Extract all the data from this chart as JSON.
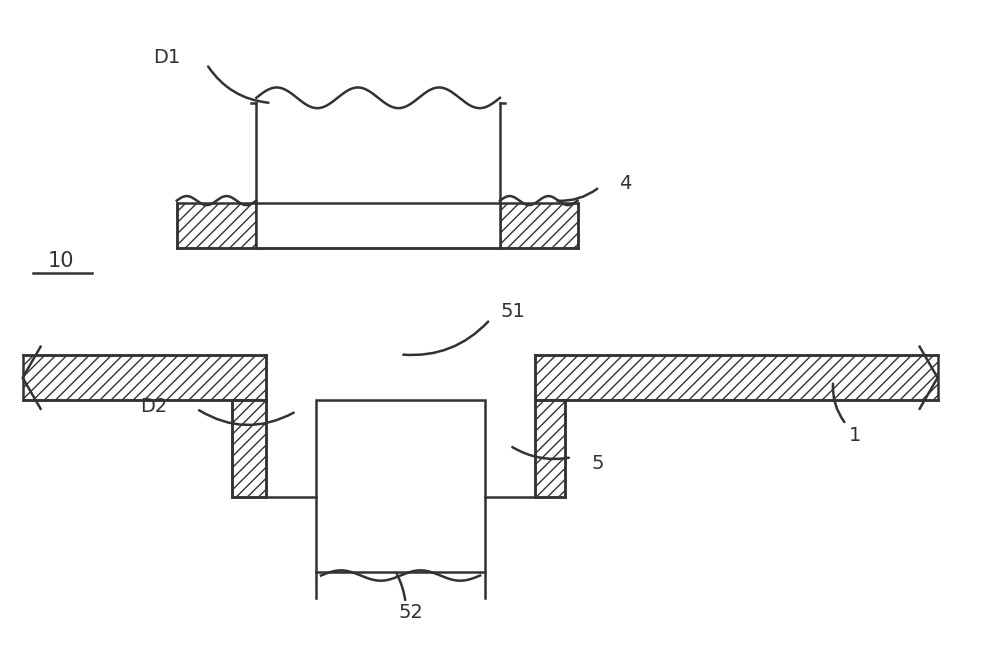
{
  "bg_color": "#ffffff",
  "line_color": "#333333",
  "fig_width": 10.0,
  "fig_height": 6.52,
  "lw": 1.8
}
